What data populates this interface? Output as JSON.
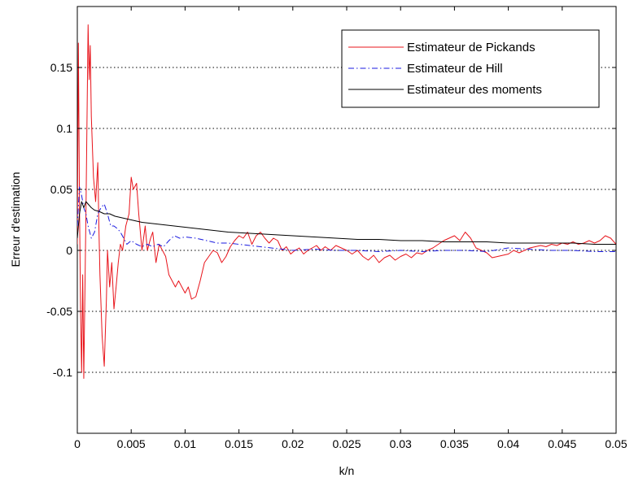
{
  "chart_data": {
    "type": "line",
    "title": "",
    "xlabel": "k/n",
    "ylabel": "Erreur d'estimation",
    "xlim": [
      0,
      0.05
    ],
    "ylim": [
      -0.15,
      0.2
    ],
    "x_ticks": [
      0,
      0.005,
      0.01,
      0.015,
      0.02,
      0.025,
      0.03,
      0.035,
      0.04,
      0.045,
      0.05
    ],
    "x_tick_labels": [
      "0",
      "0.005",
      "0.01",
      "0.015",
      "0.02",
      "0.025",
      "0.03",
      "0.035",
      "0.04",
      "0.045",
      "0.05"
    ],
    "y_ticks": [
      -0.1,
      -0.05,
      0,
      0.05,
      0.1,
      0.15
    ],
    "y_tick_labels": [
      "-0.1",
      "-0.05",
      "0",
      "0.05",
      "0.1",
      "0.15"
    ],
    "grid": "horizontal dotted",
    "legend_position": "top-right",
    "series": [
      {
        "name": "Estimateur de Pickands",
        "color": "#e8141b",
        "style": "solid",
        "x": [
          0,
          0.0001,
          0.0002,
          0.0003,
          0.0004,
          0.0005,
          0.0006,
          0.0008,
          0.001,
          0.0011,
          0.0012,
          0.0013,
          0.0015,
          0.0017,
          0.0019,
          0.002,
          0.0021,
          0.0023,
          0.0025,
          0.0027,
          0.0028,
          0.003,
          0.0032,
          0.0034,
          0.0036,
          0.0038,
          0.004,
          0.0042,
          0.0045,
          0.0048,
          0.005,
          0.0052,
          0.0055,
          0.0057,
          0.006,
          0.0063,
          0.0065,
          0.0068,
          0.007,
          0.0073,
          0.0076,
          0.0079,
          0.0082,
          0.0085,
          0.0088,
          0.0091,
          0.0094,
          0.0097,
          0.01,
          0.0103,
          0.0106,
          0.011,
          0.0114,
          0.0118,
          0.0122,
          0.0126,
          0.013,
          0.0134,
          0.0138,
          0.0142,
          0.0146,
          0.015,
          0.0154,
          0.0158,
          0.0162,
          0.0166,
          0.017,
          0.0174,
          0.0178,
          0.0182,
          0.0186,
          0.019,
          0.0194,
          0.0198,
          0.0202,
          0.0206,
          0.021,
          0.0214,
          0.0218,
          0.0222,
          0.0226,
          0.023,
          0.0235,
          0.024,
          0.0245,
          0.025,
          0.0255,
          0.026,
          0.0265,
          0.027,
          0.0275,
          0.028,
          0.0285,
          0.029,
          0.0295,
          0.03,
          0.0305,
          0.031,
          0.0315,
          0.032,
          0.0325,
          0.033,
          0.0335,
          0.034,
          0.0345,
          0.035,
          0.0355,
          0.036,
          0.0365,
          0.037,
          0.0375,
          0.038,
          0.0385,
          0.039,
          0.0395,
          0.04,
          0.0405,
          0.041,
          0.0415,
          0.042,
          0.0425,
          0.043,
          0.0435,
          0.044,
          0.0445,
          0.045,
          0.0455,
          0.046,
          0.0465,
          0.047,
          0.0475,
          0.048,
          0.0485,
          0.049,
          0.0495,
          0.05
        ],
        "y": [
          0.005,
          0.17,
          0.04,
          -0.05,
          -0.1,
          -0.02,
          -0.105,
          0.03,
          0.185,
          0.14,
          0.168,
          0.11,
          0.06,
          0.04,
          0.072,
          0.02,
          -0.02,
          -0.07,
          -0.095,
          -0.04,
          0.0,
          -0.03,
          -0.01,
          -0.048,
          -0.03,
          -0.01,
          0.005,
          0.0,
          0.02,
          0.03,
          0.06,
          0.05,
          0.055,
          0.03,
          0.0,
          0.02,
          0.0,
          0.01,
          0.015,
          -0.01,
          0.005,
          0.0,
          -0.005,
          -0.02,
          -0.025,
          -0.03,
          -0.025,
          -0.03,
          -0.035,
          -0.03,
          -0.04,
          -0.038,
          -0.025,
          -0.01,
          -0.005,
          0.0,
          -0.002,
          -0.01,
          -0.005,
          0.003,
          0.008,
          0.012,
          0.01,
          0.015,
          0.005,
          0.012,
          0.015,
          0.01,
          0.006,
          0.01,
          0.008,
          0.0,
          0.003,
          -0.003,
          0.0,
          0.002,
          -0.003,
          0.0,
          0.002,
          0.004,
          0.0,
          0.003,
          0.0,
          0.004,
          0.002,
          0.0,
          -0.003,
          0.0,
          -0.005,
          -0.008,
          -0.004,
          -0.01,
          -0.006,
          -0.004,
          -0.008,
          -0.005,
          -0.003,
          -0.006,
          -0.002,
          -0.003,
          0.0,
          0.002,
          0.005,
          0.008,
          0.01,
          0.012,
          0.008,
          0.015,
          0.01,
          0.002,
          0.0,
          -0.002,
          -0.006,
          -0.005,
          -0.004,
          -0.003,
          0.0,
          -0.002,
          0.0,
          0.002,
          0.003,
          0.004,
          0.003,
          0.005,
          0.004,
          0.006,
          0.005,
          0.007,
          0.005,
          0.006,
          0.008,
          0.006,
          0.008,
          0.012,
          0.01,
          0.005
        ]
      },
      {
        "name": "Estimateur de Hill",
        "color": "#1a1ae0",
        "style": "dash-dot",
        "x": [
          0,
          0.0002,
          0.0004,
          0.0006,
          0.0008,
          0.001,
          0.0013,
          0.0016,
          0.0019,
          0.0022,
          0.0025,
          0.0028,
          0.0031,
          0.0034,
          0.0037,
          0.004,
          0.0043,
          0.0046,
          0.005,
          0.0055,
          0.006,
          0.0065,
          0.007,
          0.0075,
          0.008,
          0.0085,
          0.009,
          0.0095,
          0.01,
          0.011,
          0.012,
          0.013,
          0.014,
          0.015,
          0.016,
          0.017,
          0.018,
          0.019,
          0.02,
          0.022,
          0.024,
          0.026,
          0.028,
          0.03,
          0.032,
          0.034,
          0.036,
          0.038,
          0.04,
          0.042,
          0.044,
          0.046,
          0.048,
          0.05
        ],
        "y": [
          0.02,
          0.052,
          0.045,
          0.035,
          0.03,
          0.02,
          0.01,
          0.015,
          0.03,
          0.035,
          0.038,
          0.03,
          0.02,
          0.02,
          0.018,
          0.015,
          0.01,
          0.005,
          0.008,
          0.005,
          0.003,
          0.005,
          0.003,
          0.005,
          0.003,
          0.008,
          0.012,
          0.01,
          0.011,
          0.01,
          0.008,
          0.006,
          0.006,
          0.005,
          0.004,
          0.003,
          0.002,
          0.001,
          0.0,
          0.001,
          0.0,
          0.0,
          -0.001,
          0.0,
          -0.001,
          0.0,
          0.0,
          -0.001,
          0.002,
          0.001,
          0.0,
          0.0,
          -0.001,
          -0.001
        ]
      },
      {
        "name": "Estimateur des moments",
        "color": "#000000",
        "style": "solid",
        "x": [
          0,
          0.0002,
          0.0004,
          0.0006,
          0.0008,
          0.001,
          0.0013,
          0.0016,
          0.002,
          0.0025,
          0.003,
          0.0035,
          0.004,
          0.0045,
          0.005,
          0.006,
          0.007,
          0.008,
          0.009,
          0.01,
          0.012,
          0.014,
          0.016,
          0.018,
          0.02,
          0.022,
          0.024,
          0.026,
          0.028,
          0.03,
          0.032,
          0.034,
          0.036,
          0.038,
          0.04,
          0.042,
          0.044,
          0.046,
          0.048,
          0.05
        ],
        "y": [
          0.01,
          0.03,
          0.04,
          0.035,
          0.04,
          0.038,
          0.035,
          0.033,
          0.032,
          0.03,
          0.03,
          0.028,
          0.027,
          0.026,
          0.025,
          0.023,
          0.022,
          0.021,
          0.02,
          0.019,
          0.017,
          0.015,
          0.014,
          0.013,
          0.012,
          0.011,
          0.01,
          0.009,
          0.009,
          0.008,
          0.008,
          0.007,
          0.007,
          0.007,
          0.006,
          0.006,
          0.006,
          0.006,
          0.005,
          0.005
        ]
      }
    ]
  }
}
